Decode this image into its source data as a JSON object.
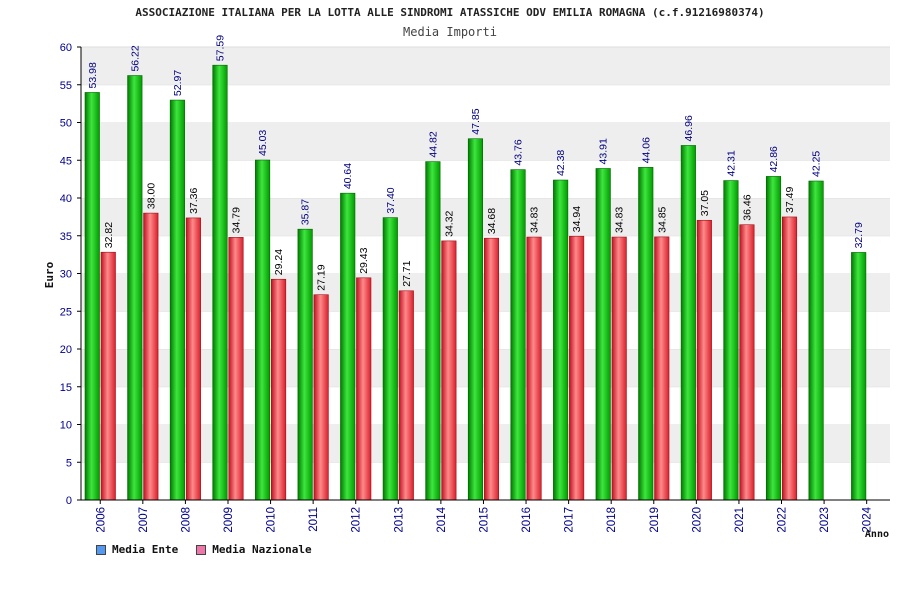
{
  "title": "ASSOCIAZIONE ITALIANA PER LA LOTTA ALLE SINDROMI ATASSICHE ODV EMILIA ROMAGNA (c.f.91216980374)",
  "subtitle": "Media Importi",
  "colors": {
    "ente": "#00aa00",
    "nazionale": "#e63340",
    "band": "#eeeeee",
    "axis": "#000000",
    "tick": "#00008b"
  },
  "legend": [
    {
      "label": "Media Ente",
      "color": "#5599ee"
    },
    {
      "label": "Media Nazionale",
      "color": "#ee77aa"
    }
  ],
  "chart_data": {
    "type": "bar",
    "title": "ASSOCIAZIONE ITALIANA PER LA LOTTA ALLE SINDROMI ATASSICHE ODV EMILIA ROMAGNA (c.f.91216980374)",
    "subtitle": "Media Importi",
    "xlabel": "Anno",
    "ylabel": "Euro",
    "ylim": [
      0,
      60
    ],
    "yticks": [
      0,
      5,
      10,
      15,
      20,
      25,
      30,
      35,
      40,
      45,
      50,
      55,
      60
    ],
    "categories": [
      "2006",
      "2007",
      "2008",
      "2009",
      "2010",
      "2011",
      "2012",
      "2013",
      "2014",
      "2015",
      "2016",
      "2017",
      "2018",
      "2019",
      "2020",
      "2021",
      "2022",
      "2023",
      "2024"
    ],
    "series": [
      {
        "name": "Media Ente",
        "values": [
          53.98,
          56.22,
          52.97,
          57.59,
          45.03,
          35.87,
          40.64,
          37.4,
          44.82,
          47.85,
          43.76,
          42.38,
          43.91,
          44.06,
          46.96,
          42.31,
          42.86,
          42.25,
          32.79
        ],
        "labels": [
          "53.98",
          "56.22",
          "52.97",
          "57.59",
          "45.03",
          "35.87",
          "40.64",
          "37.40",
          "44.82",
          "47.85",
          "43.76",
          "42.38",
          "43.91",
          "44.06",
          "46.96",
          "42.31",
          "42.86",
          "42.25",
          "32.79"
        ]
      },
      {
        "name": "Media Nazionale",
        "values": [
          32.82,
          38.0,
          37.36,
          34.79,
          29.24,
          27.19,
          29.43,
          27.71,
          34.32,
          34.68,
          34.83,
          34.94,
          34.83,
          34.85,
          37.05,
          36.46,
          37.49,
          null,
          null
        ],
        "labels": [
          "32.82",
          "38.00",
          "37.36",
          "34.79",
          "29.24",
          "27.19",
          "29.43",
          "27.71",
          "34.32",
          "34.68",
          "34.83",
          "34.94",
          "34.83",
          "34.85",
          "37.05",
          "36.46",
          "37.49",
          null,
          null
        ]
      }
    ],
    "grid": true,
    "legend_position": "bottom-left"
  }
}
